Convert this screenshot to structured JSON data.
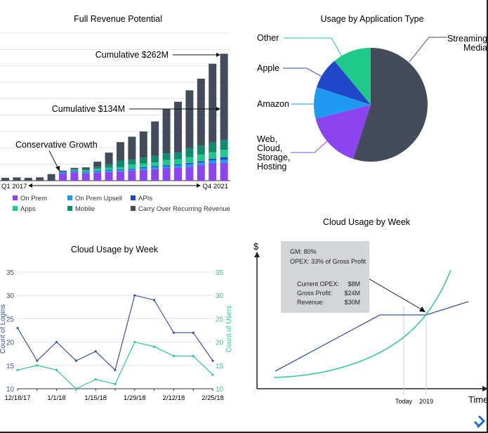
{
  "chart_data": [
    {
      "type": "bar",
      "stacked": true,
      "title": "Full Revenue Potential",
      "x_start_label": "Q1 2017",
      "x_end_label": "Q4 2021",
      "ylim": [
        0,
        90
      ],
      "grid": true,
      "legend_position": "bottom",
      "annotations": [
        "Cumulative $262M",
        "Cumulative $134M",
        "Conservative Growth"
      ],
      "series": [
        {
          "name": "On Prem",
          "color": "#8c44f0",
          "values": [
            0,
            0,
            0,
            0,
            0,
            4.3,
            5.0,
            4.4,
            5.0,
            5.2,
            5.5,
            6.0,
            6.5,
            7.0,
            7.5,
            8.0,
            8.5,
            9.5,
            10.5,
            11.0
          ]
        },
        {
          "name": "On Prem Upsell",
          "color": "#1e9bf0",
          "values": [
            0,
            0,
            0,
            0,
            0,
            1.0,
            0.8,
            0.8,
            0.8,
            1.0,
            1.0,
            1.0,
            1.2,
            1.2,
            1.3,
            1.3,
            1.5,
            1.5,
            1.8,
            1.8
          ]
        },
        {
          "name": "APIs",
          "color": "#2047c8",
          "values": [
            0,
            0,
            0,
            0,
            0,
            0.3,
            0.3,
            0.3,
            0.3,
            0.4,
            0.4,
            0.4,
            0.5,
            0.6,
            0.6,
            0.6,
            0.8,
            0.9,
            1.0,
            1.5
          ]
        },
        {
          "name": "Apps",
          "color": "#1ec98a",
          "values": [
            0,
            0,
            0,
            0,
            0,
            0,
            0.5,
            0.8,
            1.2,
            1.3,
            1.3,
            2.4,
            2.3,
            2.3,
            3.2,
            3.2,
            3.5,
            4.0,
            4.0,
            4.5
          ]
        },
        {
          "name": "Mobile",
          "color": "#138a6e",
          "values": [
            0,
            0,
            0,
            0,
            0,
            0,
            0.4,
            0.6,
            1.0,
            2.0,
            4.0,
            3.0,
            3.6,
            4.0,
            4.0,
            4.0,
            5.5,
            5.5,
            6.0,
            6.0
          ]
        },
        {
          "name": "Carry Over Recurring Revenue",
          "color": "#444c5c",
          "values": [
            1.7,
            2.0,
            1.7,
            2.0,
            4.0,
            0.5,
            0.8,
            1.2,
            3.3,
            7.2,
            11.3,
            14.0,
            15.9,
            21.0,
            26.9,
            31.0,
            35.3,
            40.8,
            48.0,
            52.6
          ]
        }
      ]
    },
    {
      "type": "pie",
      "title": "Usage by Application Type",
      "slices": [
        {
          "label": "Streaming Media",
          "value": 55,
          "color": "#444c5c"
        },
        {
          "label": "Web, Cloud, Storage, Hosting",
          "value": 16,
          "color": "#8c44f0"
        },
        {
          "label": "Amazon",
          "value": 9,
          "color": "#1e9bf0"
        },
        {
          "label": "Apple",
          "value": 9,
          "color": "#2047c8"
        },
        {
          "label": "Other",
          "value": 11,
          "color": "#1ec98a"
        }
      ]
    },
    {
      "type": "line",
      "title": "Cloud Usage by Week",
      "x": [
        "12/18/17",
        "12/25/17",
        "1/1/18",
        "1/8/18",
        "1/15/18",
        "1/22/18",
        "1/29/18",
        "2/5/18",
        "2/12/18",
        "2/19/18",
        "2/25/18"
      ],
      "x_tick_labels": [
        "12/18/17",
        "1/1/18",
        "1/15/18",
        "1/29/18",
        "2/12/18",
        "2/25/18"
      ],
      "ylabel_left": "Count of Logins",
      "ylabel_right": "Count of Users",
      "ylim": [
        10,
        35
      ],
      "y_ticks": [
        10,
        15,
        20,
        25,
        30,
        35
      ],
      "grid": true,
      "series": [
        {
          "axis": "left",
          "color": "#3a52a8",
          "values": [
            23,
            16,
            20,
            16,
            18,
            14,
            30,
            29,
            22,
            22,
            16
          ]
        },
        {
          "axis": "right",
          "color": "#2ec990",
          "values": [
            14,
            15,
            14,
            10,
            12,
            11,
            20,
            19,
            17,
            17,
            13
          ]
        }
      ]
    },
    {
      "type": "line",
      "title": "Cloud Usage by Week",
      "ylabel": "$",
      "xlabel": "Time",
      "x_markers": [
        "Today",
        "2019"
      ],
      "callout": {
        "lines_top": [
          "GM: 80%",
          "OPEX: 33% of Gross Profit"
        ],
        "rows": [
          {
            "label": "Current OPEX:",
            "value": "$8M"
          },
          {
            "label": "Gross Profit:",
            "value": "$24M"
          },
          {
            "label": "Revenue:",
            "value": "$30M"
          }
        ]
      },
      "colors": {
        "opex": "#3a52a8",
        "profit": "#2ec990",
        "callout_bg": "#d4d5d8"
      }
    }
  ]
}
